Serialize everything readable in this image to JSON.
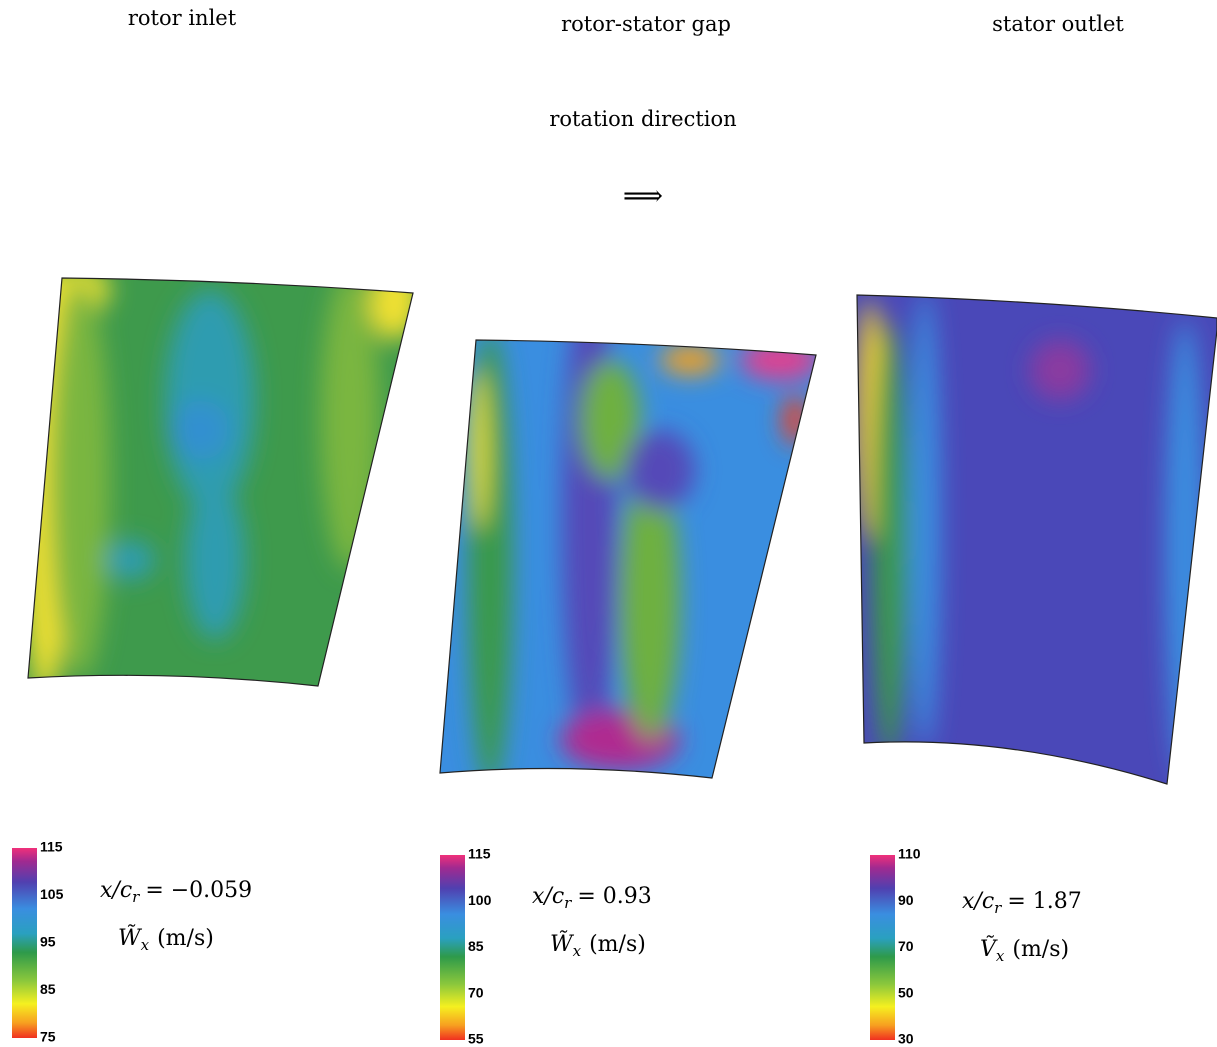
{
  "header": {
    "rotation_label": "rotation direction",
    "arrow": "⟹"
  },
  "panels": [
    {
      "title": "rotor inlet",
      "position": {
        "lhs": "x/c",
        "sub": "r",
        "rhs": "= −0.059"
      },
      "quantity": {
        "symbol": "W̃",
        "sub": "x",
        "unit": "(m/s)"
      },
      "colorbar_ticks": [
        115,
        105,
        95,
        85,
        75
      ]
    },
    {
      "title": "rotor-stator gap",
      "position": {
        "lhs": "x/c",
        "sub": "r",
        "rhs": "= 0.93"
      },
      "quantity": {
        "symbol": "W̃",
        "sub": "x",
        "unit": "(m/s)"
      },
      "colorbar_ticks": [
        115,
        100,
        85,
        70,
        55
      ]
    },
    {
      "title": "stator outlet",
      "position": {
        "lhs": "x/c",
        "sub": "r",
        "rhs": "= 1.87"
      },
      "quantity": {
        "symbol": "Ṽ",
        "sub": "x",
        "unit": "(m/s)"
      },
      "colorbar_ticks": [
        110,
        90,
        70,
        50,
        30
      ]
    }
  ]
}
